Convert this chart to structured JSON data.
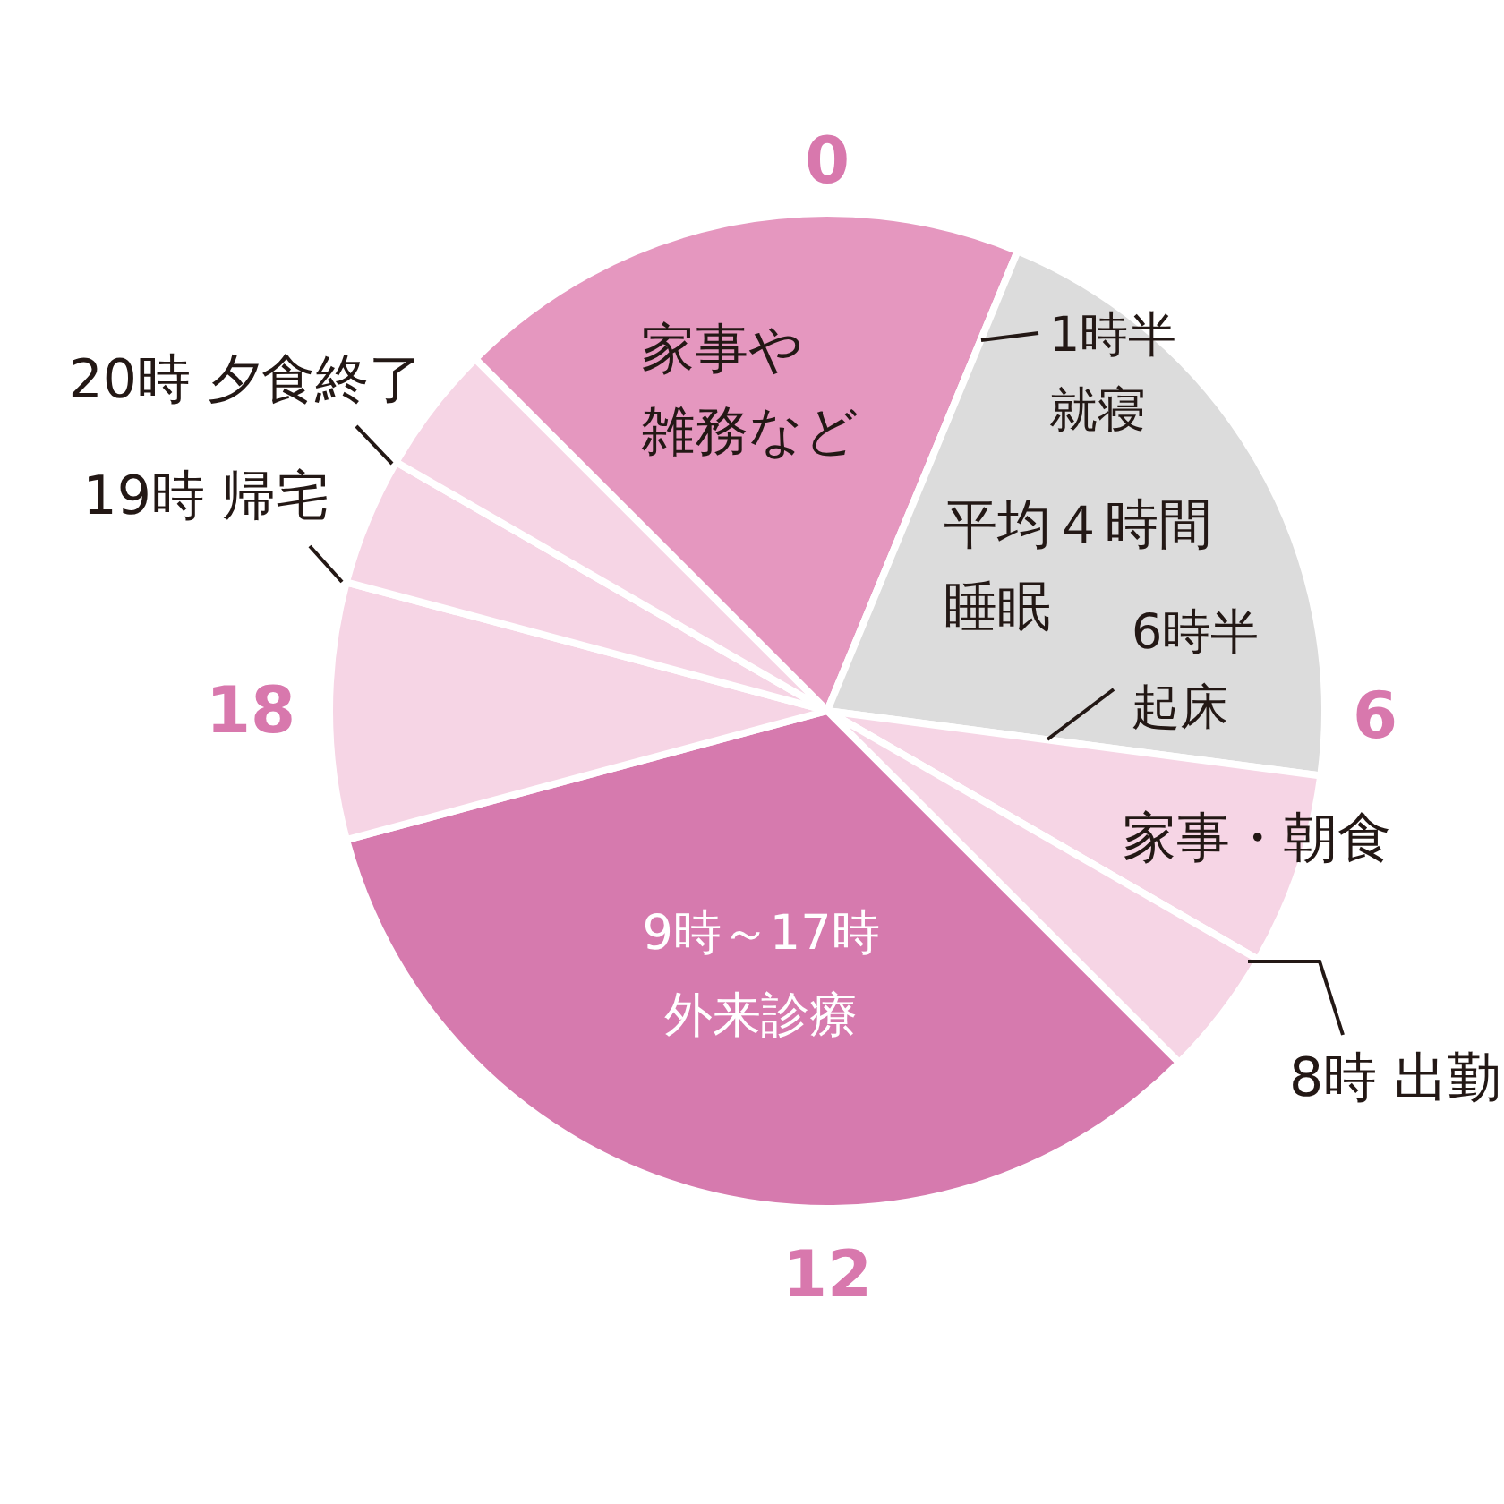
{
  "chart_data": {
    "type": "pie",
    "categories": [
      "家事や雑務など",
      "平均４時間睡眠",
      "家事・朝食",
      null,
      "9時～17時外来診療",
      null,
      null,
      null
    ],
    "values": [
      18.75,
      20.83,
      6.25,
      4.17,
      33.33,
      8.33,
      4.17,
      4.17
    ],
    "colors": [
      "#e597bf",
      "#dcdcdc",
      "#f6d5e5",
      "#f6d5e5",
      "#d67aae",
      "#f6d5e5",
      "#f6d5e5",
      "#f6d5e5"
    ],
    "annotations": [
      "0",
      "6",
      "12",
      "18",
      "1時半就寝",
      "6時半起床",
      "8時 出勤",
      "19時 帰宅",
      "20時 夕食終了"
    ]
  }
}
